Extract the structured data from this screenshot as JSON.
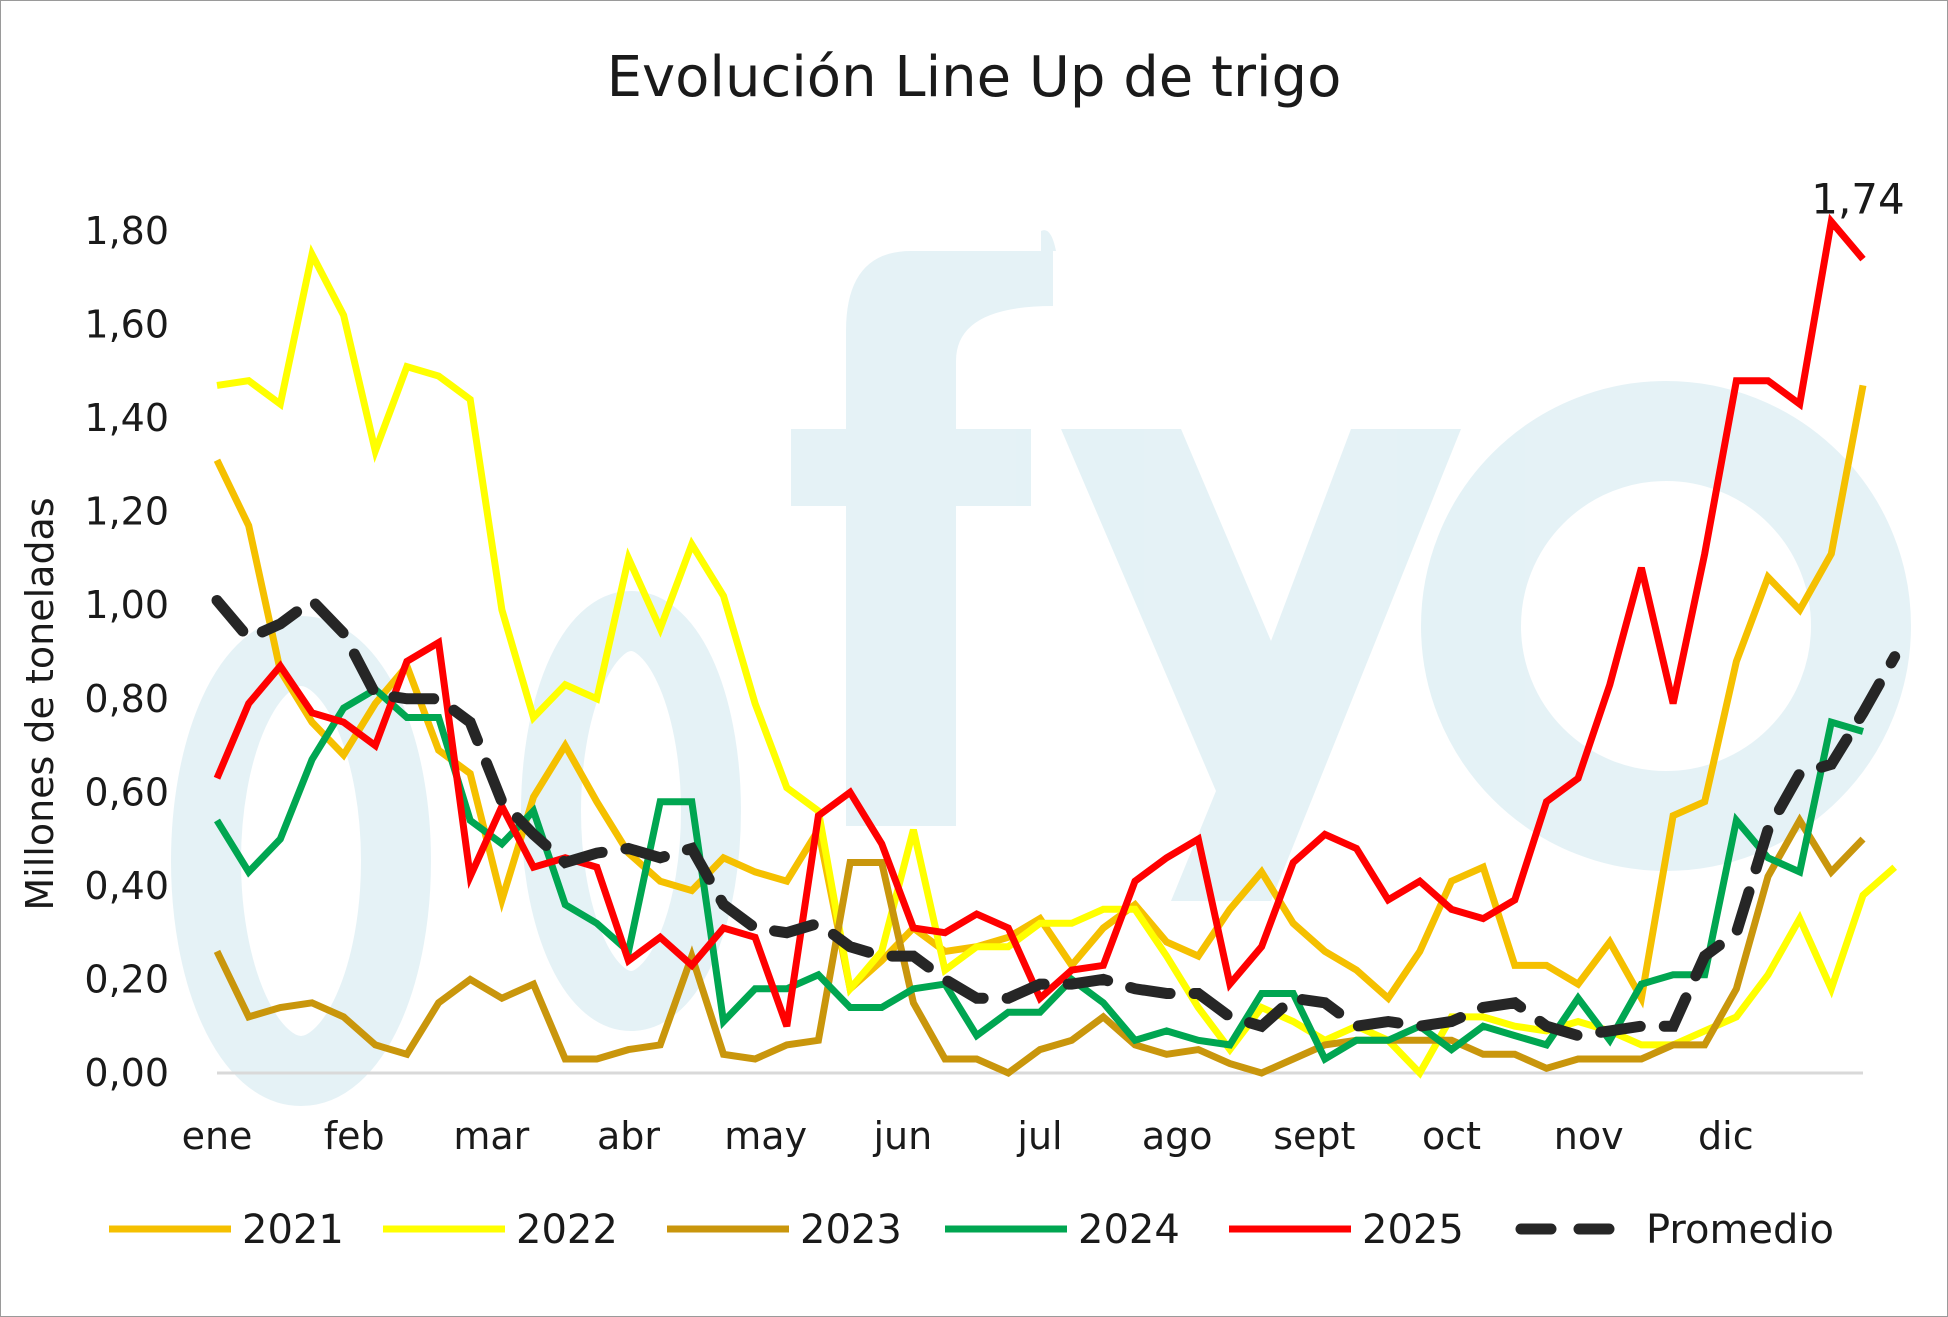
{
  "chart_data": {
    "type": "line",
    "title": "Evolución Line Up de trigo",
    "xlabel": "",
    "ylabel": "Millones de toneladas",
    "ylim": [
      0,
      1.8
    ],
    "yticks": [
      "0,00",
      "0,20",
      "0,40",
      "0,60",
      "0,80",
      "1,00",
      "1,20",
      "1,40",
      "1,60",
      "1,80"
    ],
    "month_labels": [
      "ene",
      "feb",
      "mar",
      "abr",
      "may",
      "jun",
      "jul",
      "ago",
      "sept",
      "oct",
      "nov",
      "dic"
    ],
    "grid": false,
    "legend_position": "bottom",
    "watermark": "fyo",
    "annotation": {
      "text": "1,74",
      "series": "2025"
    },
    "series": [
      {
        "name": "2021",
        "color": "#f5c000",
        "dash": false,
        "values": [
          1.31,
          1.17,
          0.86,
          0.75,
          0.68,
          0.79,
          0.87,
          0.69,
          0.64,
          0.37,
          0.59,
          0.7,
          0.58,
          0.47,
          0.41,
          0.39,
          0.46,
          0.43,
          0.41,
          0.52,
          0.18,
          0.24,
          0.31,
          0.26,
          0.27,
          0.29,
          0.33,
          0.23,
          0.31,
          0.36,
          0.28,
          0.25,
          0.35,
          0.43,
          0.32,
          0.26,
          0.22,
          0.16,
          0.26,
          0.41,
          0.44,
          0.23,
          0.23,
          0.19,
          0.28,
          0.16,
          0.55,
          0.58,
          0.88,
          1.06,
          0.99,
          1.11,
          1.47
        ]
      },
      {
        "name": "2022",
        "color": "#ffff00",
        "dash": false,
        "values": [
          1.47,
          1.48,
          1.43,
          1.75,
          1.62,
          1.33,
          1.51,
          1.49,
          1.44,
          0.99,
          0.76,
          0.83,
          0.8,
          1.1,
          0.95,
          1.13,
          1.02,
          0.79,
          0.61,
          0.56,
          0.18,
          0.26,
          0.52,
          0.22,
          0.27,
          0.27,
          0.32,
          0.32,
          0.35,
          0.35,
          0.25,
          0.14,
          0.05,
          0.14,
          0.11,
          0.07,
          0.1,
          0.07,
          0.0,
          0.12,
          0.12,
          0.1,
          0.09,
          0.11,
          0.09,
          0.06,
          0.06,
          0.09,
          0.12,
          0.21,
          0.33,
          0.18,
          0.38,
          0.44
        ]
      },
      {
        "name": "2023",
        "color": "#c9960c",
        "dash": false,
        "values": [
          0.26,
          0.12,
          0.14,
          0.15,
          0.12,
          0.06,
          0.04,
          0.15,
          0.2,
          0.16,
          0.19,
          0.03,
          0.03,
          0.05,
          0.06,
          0.25,
          0.04,
          0.03,
          0.06,
          0.07,
          0.45,
          0.45,
          0.15,
          0.03,
          0.03,
          0.0,
          0.05,
          0.07,
          0.12,
          0.06,
          0.04,
          0.05,
          0.02,
          0.0,
          0.03,
          0.06,
          0.07,
          0.07,
          0.07,
          0.07,
          0.04,
          0.04,
          0.01,
          0.03,
          0.03,
          0.03,
          0.06,
          0.06,
          0.18,
          0.42,
          0.54,
          0.43,
          0.5
        ]
      },
      {
        "name": "2024",
        "color": "#00a651",
        "dash": false,
        "values": [
          0.54,
          0.43,
          0.5,
          0.67,
          0.78,
          0.82,
          0.76,
          0.76,
          0.54,
          0.49,
          0.56,
          0.36,
          0.32,
          0.26,
          0.58,
          0.58,
          0.11,
          0.18,
          0.18,
          0.21,
          0.14,
          0.14,
          0.18,
          0.19,
          0.08,
          0.13,
          0.13,
          0.2,
          0.15,
          0.07,
          0.09,
          0.07,
          0.06,
          0.17,
          0.17,
          0.03,
          0.07,
          0.07,
          0.1,
          0.05,
          0.1,
          0.08,
          0.06,
          0.16,
          0.07,
          0.19,
          0.21,
          0.21,
          0.54,
          0.46,
          0.43,
          0.75,
          0.73
        ]
      },
      {
        "name": "2025",
        "color": "#ff0000",
        "dash": false,
        "values": [
          0.63,
          0.79,
          0.87,
          0.77,
          0.75,
          0.7,
          0.88,
          0.92,
          0.42,
          0.57,
          0.44,
          0.46,
          0.44,
          0.24,
          0.29,
          0.23,
          0.31,
          0.29,
          0.1,
          0.55,
          0.6,
          0.49,
          0.31,
          0.3,
          0.34,
          0.31,
          0.16,
          0.22,
          0.23,
          0.41,
          0.46,
          0.5,
          0.19,
          0.27,
          0.45,
          0.51,
          0.48,
          0.37,
          0.41,
          0.35,
          0.33,
          0.37,
          0.58,
          0.63,
          0.83,
          1.08,
          0.79,
          1.11,
          1.48,
          1.48,
          1.43,
          1.82,
          1.74
        ]
      },
      {
        "name": "Promedio",
        "color": "#262626",
        "dash": true,
        "values": [
          1.01,
          0.93,
          0.96,
          1.01,
          0.94,
          0.81,
          0.8,
          0.8,
          0.75,
          0.58,
          0.51,
          0.45,
          0.47,
          0.48,
          0.46,
          0.48,
          0.36,
          0.31,
          0.3,
          0.32,
          0.27,
          0.25,
          0.25,
          0.2,
          0.16,
          0.16,
          0.19,
          0.19,
          0.2,
          0.18,
          0.17,
          0.17,
          0.12,
          0.1,
          0.16,
          0.15,
          0.1,
          0.11,
          0.1,
          0.11,
          0.14,
          0.15,
          0.1,
          0.08,
          0.09,
          0.1,
          0.1,
          0.25,
          0.3,
          0.52,
          0.64,
          0.66,
          0.77,
          0.89
        ]
      }
    ]
  }
}
